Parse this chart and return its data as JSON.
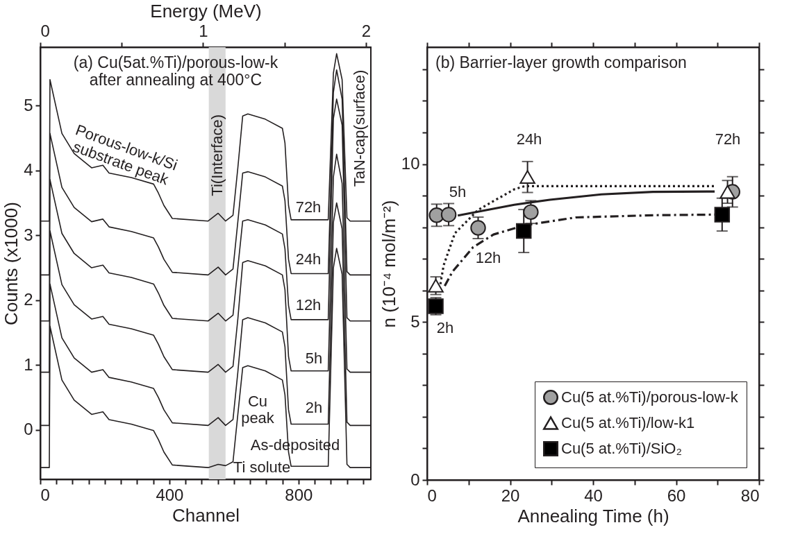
{
  "chart_data": [
    {
      "type": "line",
      "title": "(a) Cu(5at.%Ti)/porous-low-k\nafter annealing at 400°C",
      "xlabel": "Channel",
      "ylabel": "Counts (x1000)",
      "x2label": "Energy (MeV)",
      "xlim": [
        0,
        1024
      ],
      "ylim": [
        -0.76,
        5.9
      ],
      "x2lim": [
        0,
        2.03
      ],
      "xticks": [
        0,
        {
          "value": 50,
          "label": null
        },
        {
          "value": 100,
          "label": null
        },
        {
          "value": 150,
          "label": null
        },
        {
          "value": 200,
          "label": null
        },
        {
          "value": 250,
          "label": null
        },
        {
          "value": 300,
          "label": null
        },
        {
          "value": 350,
          "label": null
        },
        400,
        {
          "value": 450,
          "label": null
        },
        {
          "value": 500,
          "label": null
        },
        {
          "value": 550,
          "label": null
        },
        {
          "value": 600,
          "label": null
        },
        {
          "value": 650,
          "label": null
        },
        {
          "value": 700,
          "label": null
        },
        {
          "value": 750,
          "label": null
        },
        800,
        {
          "value": 850,
          "label": null
        },
        {
          "value": 900,
          "label": null
        },
        {
          "value": 950,
          "label": null
        },
        {
          "value": 1000,
          "label": null
        }
      ],
      "yticks": [
        0,
        1,
        2,
        3,
        4,
        5
      ],
      "x2ticks": [
        0,
        {
          "value": 0.5,
          "label": null
        },
        1,
        {
          "value": 1.5,
          "label": null
        },
        2
      ],
      "x": [
        0,
        28,
        30,
        67,
        105,
        159,
        194,
        213,
        282,
        351,
        366,
        383,
        409,
        520,
        551,
        574,
        597,
        612,
        627,
        643,
        697,
        750,
        758,
        769,
        777,
        892,
        908,
        918,
        935,
        950,
        960,
        1024
      ],
      "series": [
        {
          "color": "#231f20",
          "values": [
            3.22,
            3.22,
            5.4,
            4.57,
            4.26,
            4.04,
            4.08,
            3.96,
            3.89,
            3.79,
            3.65,
            3.46,
            3.26,
            3.22,
            3.34,
            3.22,
            3.31,
            4.04,
            4.84,
            4.87,
            4.79,
            4.65,
            4.42,
            3.46,
            3.24,
            3.24,
            5.5,
            5.8,
            5.4,
            3.27,
            3.22,
            3.22
          ]
        },
        {
          "color": "#231f20",
          "values": [
            2.39,
            2.39,
            4.57,
            3.74,
            3.43,
            3.21,
            3.25,
            3.13,
            3.06,
            2.96,
            2.82,
            2.63,
            2.43,
            2.39,
            2.51,
            2.39,
            2.48,
            3.21,
            3.96,
            3.98,
            3.9,
            3.76,
            3.53,
            2.63,
            2.41,
            2.41,
            5.2,
            5.55,
            5.1,
            2.44,
            2.39,
            2.39
          ]
        },
        {
          "color": "#231f20",
          "values": [
            1.68,
            1.68,
            3.86,
            3.03,
            2.72,
            2.5,
            2.54,
            2.42,
            2.35,
            2.25,
            2.11,
            1.92,
            1.72,
            1.68,
            1.8,
            1.68,
            1.77,
            2.5,
            3.22,
            3.24,
            3.16,
            3.02,
            2.79,
            1.92,
            1.7,
            1.7,
            4.8,
            5.1,
            4.7,
            1.73,
            1.68,
            1.68
          ]
        },
        {
          "color": "#231f20",
          "values": [
            0.89,
            0.89,
            3.07,
            2.24,
            1.93,
            1.71,
            1.75,
            1.63,
            1.56,
            1.46,
            1.32,
            1.13,
            0.93,
            0.89,
            1.01,
            0.89,
            0.98,
            1.71,
            2.58,
            2.61,
            2.53,
            2.39,
            2.16,
            1.13,
            0.91,
            0.91,
            3.9,
            4.25,
            3.8,
            0.94,
            0.89,
            0.89
          ]
        },
        {
          "color": "#231f20",
          "values": [
            0.07,
            0.07,
            2.25,
            1.42,
            1.11,
            0.89,
            0.93,
            0.81,
            0.74,
            0.64,
            0.5,
            0.31,
            0.11,
            0.07,
            0.19,
            0.07,
            0.16,
            0.89,
            1.7,
            1.73,
            1.65,
            1.51,
            1.28,
            0.31,
            0.09,
            0.09,
            3.2,
            3.5,
            3.1,
            0.12,
            0.07,
            0.07
          ]
        },
        {
          "color": "#231f20",
          "values": [
            -0.58,
            -0.58,
            1.6,
            0.77,
            0.46,
            0.24,
            0.28,
            0.16,
            0.09,
            -0.01,
            -0.15,
            -0.34,
            -0.54,
            -0.58,
            -0.53,
            -0.55,
            -0.49,
            0.24,
            0.96,
            0.99,
            0.91,
            0.77,
            0.54,
            -0.34,
            -0.56,
            -0.56,
            2.5,
            2.8,
            2.4,
            -0.53,
            -0.58,
            -0.58
          ]
        }
      ],
      "bands": [
        {
          "axis": "x",
          "from": 522,
          "to": 574,
          "label": "Ti(Interface)",
          "color": "#d9d9d9"
        }
      ],
      "annotations": [
        "Porous-low-k/Si\nsubstrate peak",
        "TaN-cap(surface)",
        "Cu\npeak",
        "As-deposited",
        "Ti solute",
        "72h",
        "24h",
        "12h",
        "5h",
        "2h"
      ]
    },
    {
      "type": "scatter",
      "title": "(b) Barrier-layer growth comparison",
      "xlabel": "Annealing Time (h)",
      "ylabel": "n (10⁻⁴ mol/m⁻²)",
      "xlim": [
        0,
        80
      ],
      "ylim": [
        0,
        13.7
      ],
      "xticks": [
        0,
        {
          "value": 10,
          "label": null
        },
        20,
        {
          "value": 30,
          "label": null
        },
        40,
        {
          "value": 50,
          "label": null
        },
        60,
        {
          "value": 70,
          "label": null
        },
        80
      ],
      "yticks": [
        0,
        {
          "value": 1,
          "label": null
        },
        {
          "value": 2,
          "label": null
        },
        {
          "value": 3,
          "label": null
        },
        {
          "value": 4,
          "label": null
        },
        5,
        {
          "value": 6,
          "label": null
        },
        {
          "value": 7,
          "label": null
        },
        {
          "value": 8,
          "label": null
        },
        {
          "value": 9,
          "label": null
        },
        10,
        {
          "value": 11,
          "label": null
        },
        {
          "value": 12,
          "label": null
        },
        {
          "value": 13,
          "label": null
        }
      ],
      "legend": "bottom right",
      "series": [
        {
          "type": "line",
          "line_style": "solid",
          "color": "#231f20",
          "x": [
            7.4,
            21.0,
            29.6,
            42,
            54.4,
            69.3
          ],
          "values": [
            8.37,
            8.71,
            8.87,
            9.04,
            9.12,
            9.13
          ]
        },
        {
          "type": "line",
          "line_style": "dotted",
          "color": "#231f20",
          "x": [
            3.2,
            4.0,
            6.7,
            12.3,
            21.0,
            23.5,
            27.1,
            69.3
          ],
          "values": [
            6.2,
            6.8,
            7.81,
            8.55,
            9.2,
            9.3,
            9.3,
            9.3
          ]
        },
        {
          "type": "line",
          "line_style": "dashdot",
          "color": "#231f20",
          "x": [
            4.25,
            6.1,
            11.1,
            16.0,
            23.5,
            35.8,
            54.4,
            69.3
          ],
          "values": [
            6.14,
            6.59,
            7.37,
            7.77,
            8.06,
            8.31,
            8.38,
            8.4
          ]
        },
        {
          "name": "Cu(5 at.%Ti)/porous-low-k",
          "type": "scatter",
          "marker": "circle",
          "color": "#a0a0a0",
          "x": [
            2.3,
            5.2,
            12.3,
            25.0,
            73.6
          ],
          "values": [
            8.38,
            8.4,
            7.98,
            8.48,
            9.12
          ],
          "errors": [
            0.35,
            0.35,
            0.34,
            0.36,
            0.48
          ]
        },
        {
          "name": "Cu(5 at.%Ti)/low-k1",
          "type": "scatter",
          "marker": "triangle",
          "color": "#ffffff",
          "x": [
            2.1,
            24.2,
            72.4
          ],
          "values": [
            6.15,
            9.59,
            9.12
          ],
          "errors": [
            0.28,
            0.49,
            0.36
          ]
        },
        {
          "name": "Cu(5 at.%Ti)/SiO₂",
          "type": "scatter",
          "marker": "square",
          "color": "#000000",
          "x": [
            2.1,
            23.3,
            71.1
          ],
          "values": [
            5.5,
            7.88,
            8.4
          ],
          "errors": [
            0.27,
            0.68,
            0.52
          ]
        }
      ],
      "annotations": [
        "5h",
        "24h",
        "72h",
        "12h",
        "2h"
      ]
    }
  ]
}
